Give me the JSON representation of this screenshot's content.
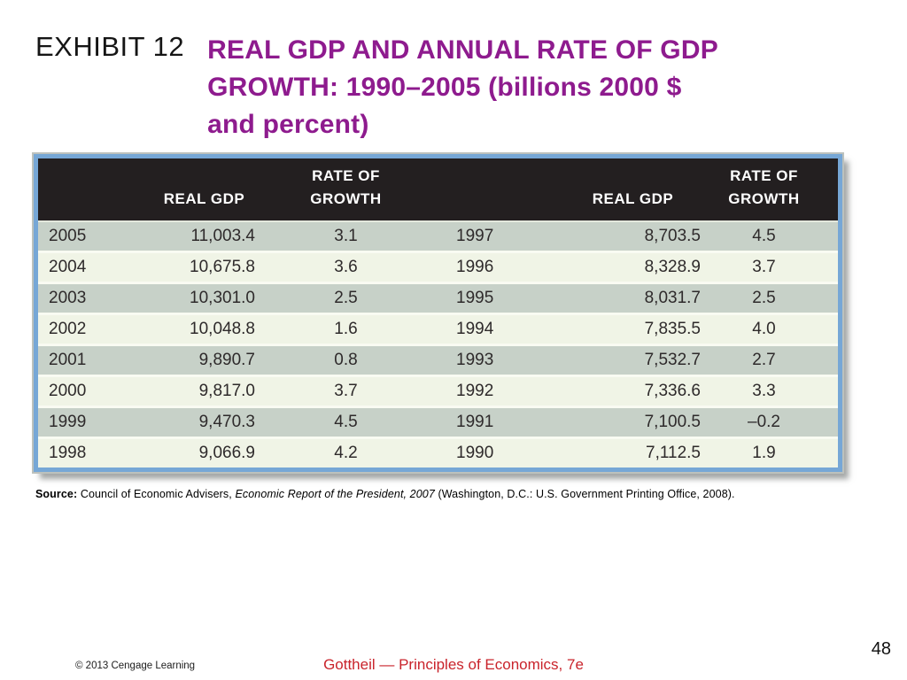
{
  "slide": {
    "exhibit_label": "EXHIBIT 12",
    "title_lines": [
      "REAL GDP AND ANNUAL RATE OF GDP",
      "GROWTH: 1990–2005 (billions 2000 $",
      "and percent)"
    ]
  },
  "table": {
    "header": {
      "real_gdp": "REAL GDP",
      "rate_line1": "RATE OF",
      "rate_line2": "GROWTH"
    },
    "rows": [
      {
        "year_left": "2005",
        "gdp_left": "11,003.4",
        "rate_left": "3.1",
        "year_right": "1997",
        "gdp_right": "8,703.5",
        "rate_right": "4.5"
      },
      {
        "year_left": "2004",
        "gdp_left": "10,675.8",
        "rate_left": "3.6",
        "year_right": "1996",
        "gdp_right": "8,328.9",
        "rate_right": "3.7"
      },
      {
        "year_left": "2003",
        "gdp_left": "10,301.0",
        "rate_left": "2.5",
        "year_right": "1995",
        "gdp_right": "8,031.7",
        "rate_right": "2.5"
      },
      {
        "year_left": "2002",
        "gdp_left": "10,048.8",
        "rate_left": "1.6",
        "year_right": "1994",
        "gdp_right": "7,835.5",
        "rate_right": "4.0"
      },
      {
        "year_left": "2001",
        "gdp_left": "9,890.7",
        "rate_left": "0.8",
        "year_right": "1993",
        "gdp_right": "7,532.7",
        "rate_right": "2.7"
      },
      {
        "year_left": "2000",
        "gdp_left": "9,817.0",
        "rate_left": "3.7",
        "year_right": "1992",
        "gdp_right": "7,336.6",
        "rate_right": "3.3"
      },
      {
        "year_left": "1999",
        "gdp_left": "9,470.3",
        "rate_left": "4.5",
        "year_right": "1991",
        "gdp_right": "7,100.5",
        "rate_right": "–0.2"
      },
      {
        "year_left": "1998",
        "gdp_left": "9,066.9",
        "rate_left": "4.2",
        "year_right": "1990",
        "gdp_right": "7,112.5",
        "rate_right": "1.9"
      }
    ]
  },
  "source": {
    "label": "Source:",
    "text_before_italic": " Council of Economic Advisers, ",
    "italic": "Economic Report of the President, 2007",
    "text_after_italic": " (Washington, D.C.: U.S. Government Printing Office, 2008)."
  },
  "footer": {
    "copyright": "© 2013 Cengage Learning",
    "book": "Gottheil — Principles of Economics, 7e",
    "page_number": "48"
  },
  "colors": {
    "title_purple": "#8e1b8e",
    "footer_red": "#c9232b",
    "table_header_bg": "#231f20",
    "row_gray": "#c7d1c8",
    "row_cream": "#f0f4e6",
    "frame_blue": "#76a7d6"
  },
  "chart_data": {
    "type": "table",
    "title": "REAL GDP AND ANNUAL RATE OF GDP GROWTH: 1990–2005 (billions 2000 $ and percent)",
    "columns": [
      "Year",
      "Real GDP",
      "Rate of Growth"
    ],
    "rows": [
      [
        2005,
        11003.4,
        3.1
      ],
      [
        2004,
        10675.8,
        3.6
      ],
      [
        2003,
        10301.0,
        2.5
      ],
      [
        2002,
        10048.8,
        1.6
      ],
      [
        2001,
        9890.7,
        0.8
      ],
      [
        2000,
        9817.0,
        3.7
      ],
      [
        1999,
        9470.3,
        4.5
      ],
      [
        1998,
        9066.9,
        4.2
      ],
      [
        1997,
        8703.5,
        4.5
      ],
      [
        1996,
        8328.9,
        3.7
      ],
      [
        1995,
        8031.7,
        2.5
      ],
      [
        1994,
        7835.5,
        4.0
      ],
      [
        1993,
        7532.7,
        2.7
      ],
      [
        1992,
        7336.6,
        3.3
      ],
      [
        1991,
        7100.5,
        -0.2
      ],
      [
        1990,
        7112.5,
        1.9
      ]
    ]
  }
}
